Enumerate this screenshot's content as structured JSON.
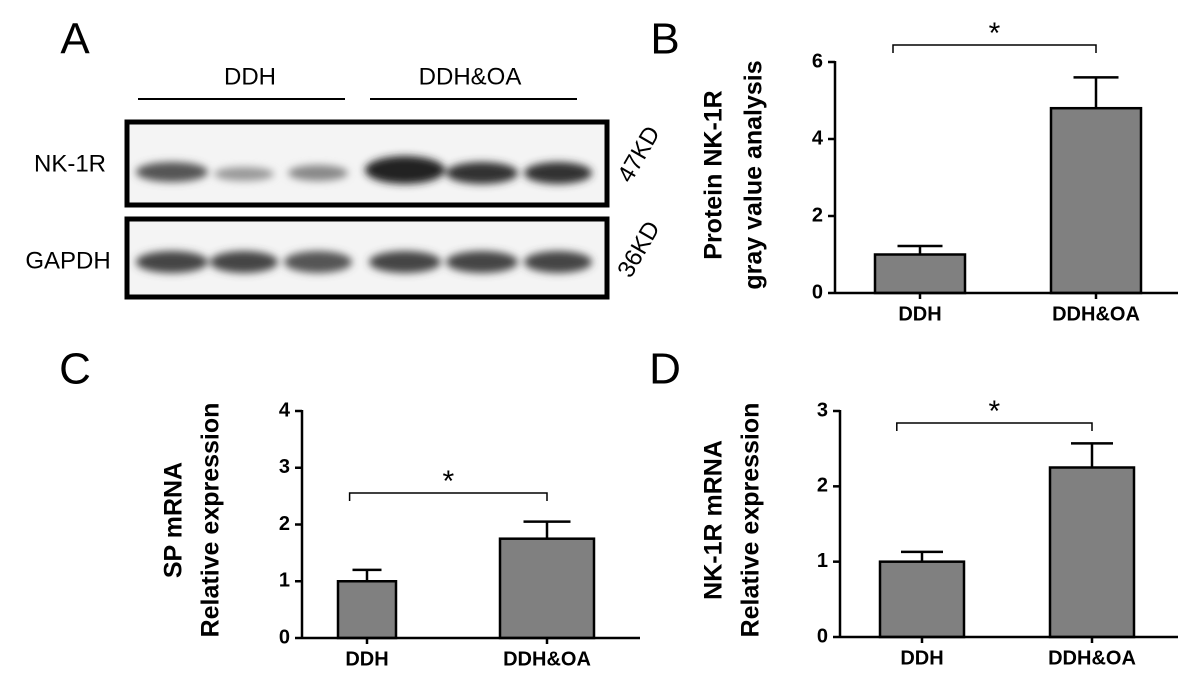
{
  "blot": {
    "panel_label": "A",
    "groups": [
      "DDH",
      "DDH&OA"
    ],
    "rows": [
      {
        "name": "NK-1R",
        "size": "47KD"
      },
      {
        "name": "GAPDH",
        "size": "36KD"
      }
    ]
  },
  "chart_data": [
    {
      "type": "bar",
      "panel_label": "B",
      "ylabel": [
        "Protein NK-1R",
        "gray value analysis"
      ],
      "categories": [
        "DDH",
        "DDH&OA"
      ],
      "values": [
        1.0,
        4.8
      ],
      "errors": [
        0.22,
        0.8
      ],
      "color": "#808080",
      "ylim": [
        0,
        6
      ],
      "yticks": [
        0,
        2,
        4,
        6
      ],
      "annotation": "*"
    },
    {
      "type": "bar",
      "panel_label": "C",
      "ylabel": [
        "SP mRNA",
        "Relative expression"
      ],
      "categories": [
        "DDH",
        "DDH&OA"
      ],
      "values": [
        1.0,
        1.75
      ],
      "errors": [
        0.2,
        0.3
      ],
      "color": "#808080",
      "ylim": [
        0,
        4
      ],
      "yticks": [
        0,
        1,
        2,
        3,
        4
      ],
      "annotation": "*"
    },
    {
      "type": "bar",
      "panel_label": "D",
      "ylabel": [
        "NK-1R mRNA",
        "Relative expression"
      ],
      "categories": [
        "DDH",
        "DDH&OA"
      ],
      "values": [
        1.0,
        2.25
      ],
      "errors": [
        0.13,
        0.32
      ],
      "color": "#808080",
      "ylim": [
        0,
        3
      ],
      "yticks": [
        0,
        1,
        2,
        3
      ],
      "annotation": "*"
    }
  ]
}
